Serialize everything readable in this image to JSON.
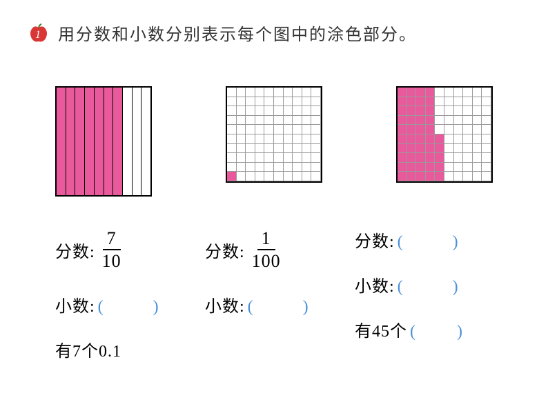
{
  "question_number": "1",
  "instruction": "用分数和小数分别表示每个图中的涂色部分。",
  "diagrams": {
    "d1": {
      "type": "tenths",
      "total_cols": 10,
      "filled_cols": 7,
      "fill_color": "#e85a9b"
    },
    "d2": {
      "type": "hundredths",
      "rows": 10,
      "cols": 10,
      "filled_cells": [
        [
          9,
          0
        ]
      ],
      "fill_color": "#e85a9b"
    },
    "d3": {
      "type": "hundredths",
      "rows": 10,
      "cols": 10,
      "fill_color": "#e85a9b",
      "filled_by_row": [
        4,
        4,
        4,
        4,
        4,
        5,
        5,
        5,
        5,
        5
      ]
    }
  },
  "labels": {
    "fraction_label": "分数:",
    "decimal_label": "小数:",
    "blank_paren": "(　　)"
  },
  "answers": {
    "a1": {
      "frac_num": "7",
      "frac_den": "10",
      "count_text": "有7个0.1"
    },
    "a2": {
      "frac_num": "1",
      "frac_den": "100"
    },
    "a3": {
      "count_prefix": "有45个",
      "count_blank": "(　　)"
    }
  }
}
